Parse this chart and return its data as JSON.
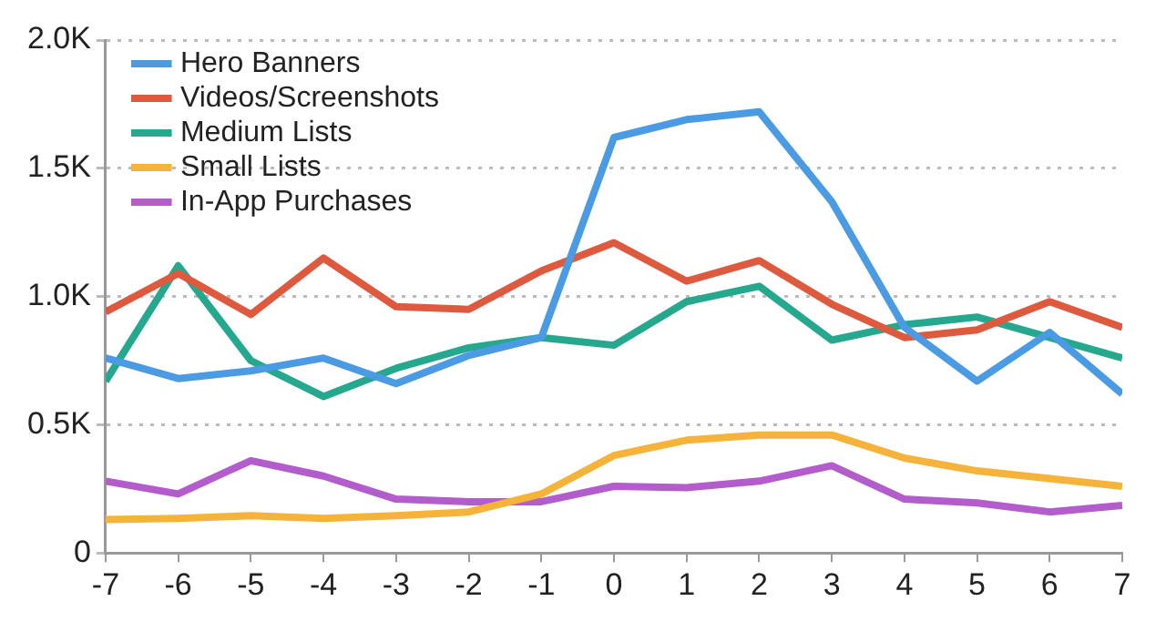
{
  "chart_data": {
    "type": "line",
    "x": [
      -7,
      -6,
      -5,
      -4,
      -3,
      -2,
      -1,
      0,
      1,
      2,
      3,
      4,
      5,
      6,
      7
    ],
    "xlim": [
      -7,
      7
    ],
    "xticks": [
      -7,
      -6,
      -5,
      -4,
      -3,
      -2,
      -1,
      0,
      1,
      2,
      3,
      4,
      5,
      6,
      7
    ],
    "ylim": [
      0,
      2000
    ],
    "yticks": [
      0,
      {
        "value": 500,
        "label": "0.5K"
      },
      {
        "value": 1000,
        "label": "1.0K"
      },
      {
        "value": 1500,
        "label": "1.5K"
      },
      {
        "value": 2000,
        "label": "2.0K"
      }
    ],
    "grid": "y",
    "legend": "top left",
    "marker": "none",
    "line_style": "solid",
    "series": [
      {
        "name": "Hero Banners",
        "color": "#4a9be4",
        "values": [
          760,
          680,
          710,
          760,
          660,
          770,
          840,
          1620,
          1690,
          1720,
          1370,
          880,
          670,
          860,
          620
        ]
      },
      {
        "name": "Videos/Screenshots",
        "color": "#dd5a3e",
        "values": [
          940,
          1090,
          930,
          1150,
          960,
          950,
          1100,
          1210,
          1060,
          1140,
          970,
          840,
          870,
          980,
          880
        ]
      },
      {
        "name": "Medium Lists",
        "color": "#26a88e",
        "values": [
          670,
          1120,
          750,
          610,
          720,
          800,
          840,
          810,
          980,
          1040,
          830,
          890,
          920,
          840,
          760
        ]
      },
      {
        "name": "Small Lists",
        "color": "#f5b33a",
        "values": [
          130,
          135,
          145,
          135,
          145,
          160,
          230,
          380,
          440,
          460,
          460,
          370,
          320,
          290,
          260
        ]
      },
      {
        "name": "In-App Purchases",
        "color": "#b35ccc",
        "values": [
          280,
          230,
          360,
          300,
          210,
          200,
          200,
          260,
          255,
          280,
          340,
          210,
          195,
          160,
          185
        ]
      }
    ]
  }
}
